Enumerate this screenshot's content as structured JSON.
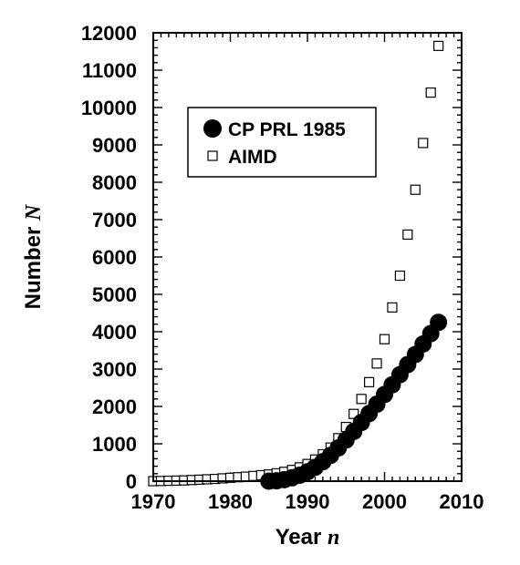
{
  "chart_data": {
    "type": "scatter",
    "xlabel": "Year",
    "xlabel_var": "n",
    "ylabel": "Number",
    "ylabel_var": "N",
    "xlim": [
      1970,
      2010
    ],
    "ylim": [
      0,
      12000
    ],
    "x_ticks": [
      1970,
      1980,
      1990,
      2000,
      2010
    ],
    "y_ticks": [
      0,
      1000,
      2000,
      3000,
      4000,
      5000,
      6000,
      7000,
      8000,
      9000,
      10000,
      11000,
      12000
    ],
    "grid": false,
    "legend_position": "upper-left",
    "series": [
      {
        "name": "CP PRL 1985",
        "marker": "filled-circle",
        "color": "#000000",
        "x": [
          1985,
          1986,
          1987,
          1988,
          1989,
          1990,
          1991,
          1992,
          1993,
          1994,
          1995,
          1996,
          1997,
          1998,
          1999,
          2000,
          2001,
          2002,
          2003,
          2004,
          2005,
          2006,
          2007
        ],
        "y": [
          0,
          10,
          40,
          90,
          160,
          250,
          370,
          520,
          690,
          890,
          1100,
          1330,
          1570,
          1810,
          2060,
          2320,
          2580,
          2850,
          3120,
          3390,
          3670,
          3950,
          4250
        ]
      },
      {
        "name": "AIMD",
        "marker": "open-square",
        "color": "#000000",
        "x": [
          1970,
          1971,
          1972,
          1973,
          1974,
          1975,
          1976,
          1977,
          1978,
          1979,
          1980,
          1981,
          1982,
          1983,
          1984,
          1985,
          1986,
          1987,
          1988,
          1989,
          1990,
          1991,
          1992,
          1993,
          1994,
          1995,
          1996,
          1997,
          1998,
          1999,
          2000,
          2001,
          2002,
          2003,
          2004,
          2005,
          2006,
          2007
        ],
        "y": [
          0,
          5,
          10,
          15,
          20,
          30,
          40,
          50,
          60,
          75,
          90,
          105,
          120,
          140,
          160,
          180,
          210,
          250,
          300,
          370,
          460,
          580,
          720,
          900,
          1150,
          1450,
          1800,
          2200,
          2650,
          3150,
          3800,
          4650,
          5500,
          6600,
          7800,
          9050,
          10400,
          11650
        ]
      }
    ]
  }
}
